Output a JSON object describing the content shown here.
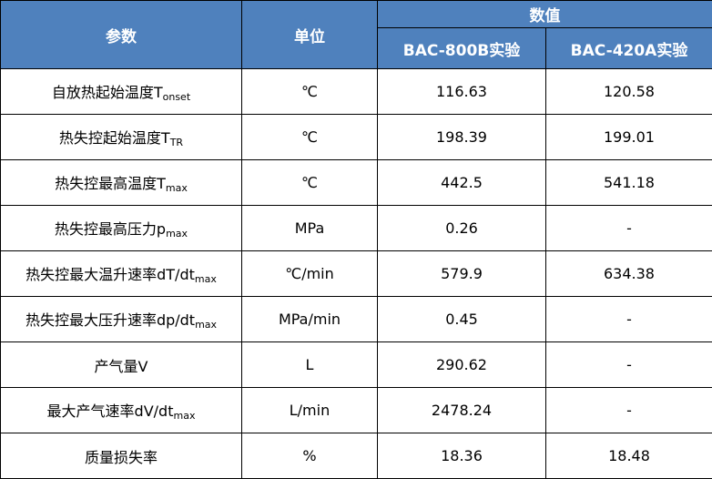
{
  "header": {
    "param": "参数",
    "unit": "单位",
    "values": "数值",
    "col1": "BAC-800B实验",
    "col2": "BAC-420A实验"
  },
  "rows": [
    {
      "name": "自放热起始温度T",
      "sub": "onset",
      "unit": "℃",
      "v1": "116.63",
      "v2": "120.58"
    },
    {
      "name": "热失控起始温度T",
      "sub": "TR",
      "unit": "℃",
      "v1": "198.39",
      "v2": "199.01"
    },
    {
      "name": "热失控最高温度T",
      "sub": "max",
      "unit": "℃",
      "v1": "442.5",
      "v2": "541.18"
    },
    {
      "name": "热失控最高压力p",
      "sub": "max",
      "unit": "MPa",
      "v1": "0.26",
      "v2": "-"
    },
    {
      "name": "热失控最大温升速率dT/dt",
      "sub": "max",
      "unit": "℃/min",
      "v1": "579.9",
      "v2": "634.38"
    },
    {
      "name": "热失控最大压升速率dp/dt",
      "sub": "max",
      "unit": "MPa/min",
      "v1": "0.45",
      "v2": "-"
    },
    {
      "name": "产气量V",
      "sub": "",
      "unit": "L",
      "v1": "290.62",
      "v2": "-"
    },
    {
      "name": "最大产气速率dV/dt",
      "sub": "max",
      "unit": "L/min",
      "v1": "2478.24",
      "v2": "-"
    },
    {
      "name": "质量损失率",
      "sub": "",
      "unit": "%",
      "v1": "18.36",
      "v2": "18.48"
    }
  ],
  "colors": {
    "header_bg": "#4f81bd",
    "header_text": "#ffffff"
  }
}
